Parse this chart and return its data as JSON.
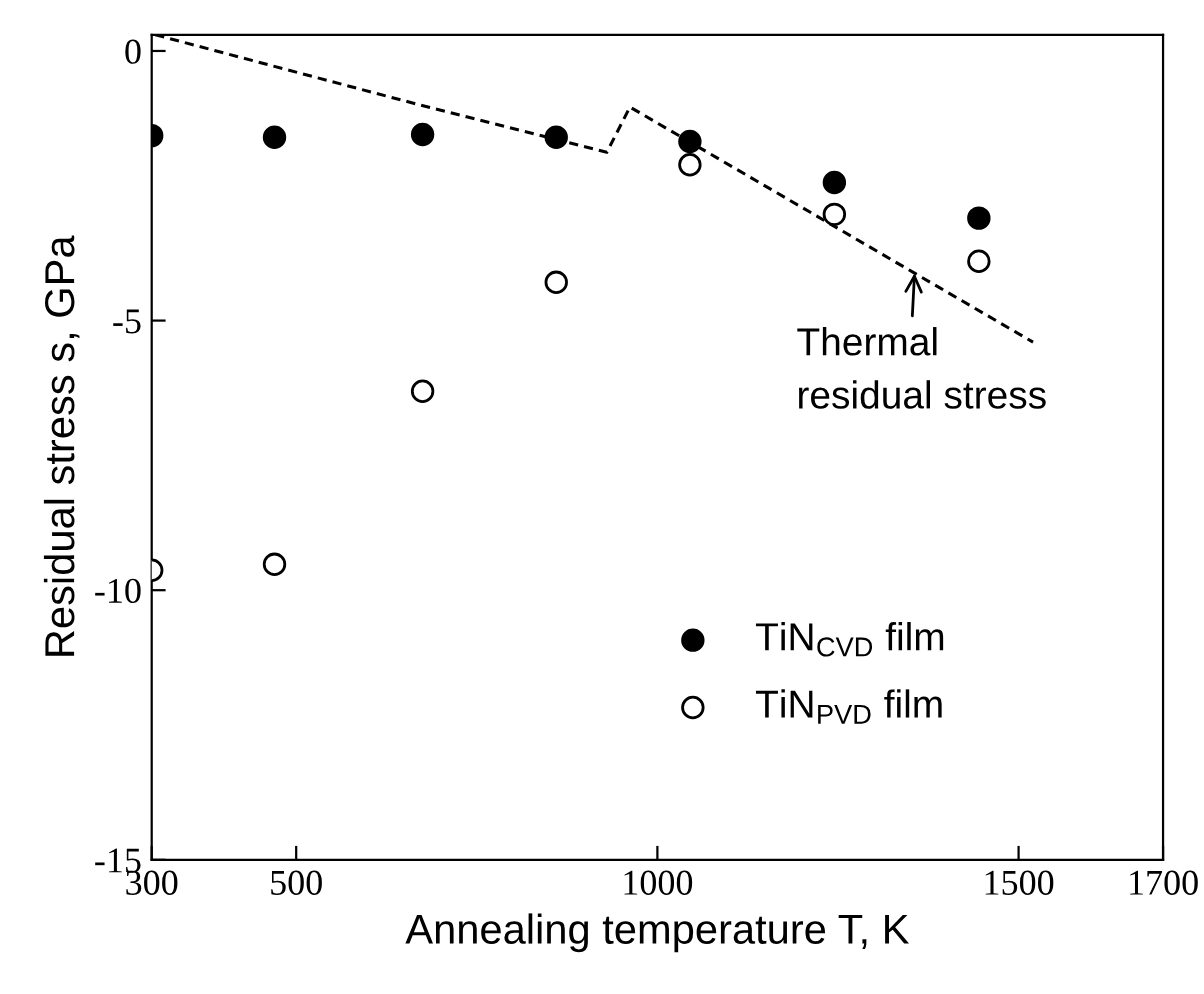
{
  "chart_data": {
    "type": "scatter",
    "xlabel": "Annealing temperature T, K",
    "ylabel": "Residual stress s, GPa",
    "xlim": [
      300,
      1700
    ],
    "xticks": [
      300,
      500,
      1000,
      1500,
      1700
    ],
    "ylim": [
      -15,
      0.3
    ],
    "yticks": [
      0,
      -5,
      -10,
      -15
    ],
    "grid": false,
    "legend": "bottom right",
    "marker": "circle",
    "series": [
      {
        "name": "TiN$_{CVD}$ film",
        "color": "#000000",
        "x": [
          300,
          470,
          675,
          860,
          1045,
          1245,
          1445
        ],
        "values": [
          -1.57,
          -1.6,
          -1.55,
          -1.6,
          -1.68,
          -2.44,
          -3.1
        ]
      },
      {
        "name": "TiN$_{PVD}$ film",
        "color": "#ffffff",
        "x": [
          300,
          470,
          675,
          860,
          1045,
          1245,
          1445
        ],
        "values": [
          -9.63,
          -9.52,
          -6.31,
          -4.29,
          -2.11,
          -3.03,
          -3.9
        ]
      },
      {
        "type": "line",
        "color": "#000000",
        "line_style": "dashed",
        "marker": "none",
        "x": [
          305,
          671,
          930,
          962,
          1356,
          1520
        ],
        "values": [
          0.3,
          -1.0,
          -1.88,
          -1.04,
          -4.12,
          -5.4
        ]
      }
    ],
    "annotations": [
      {
        "text": "Thermal\nresidual stress",
        "x": 1356,
        "y": -4.12
      }
    ]
  }
}
